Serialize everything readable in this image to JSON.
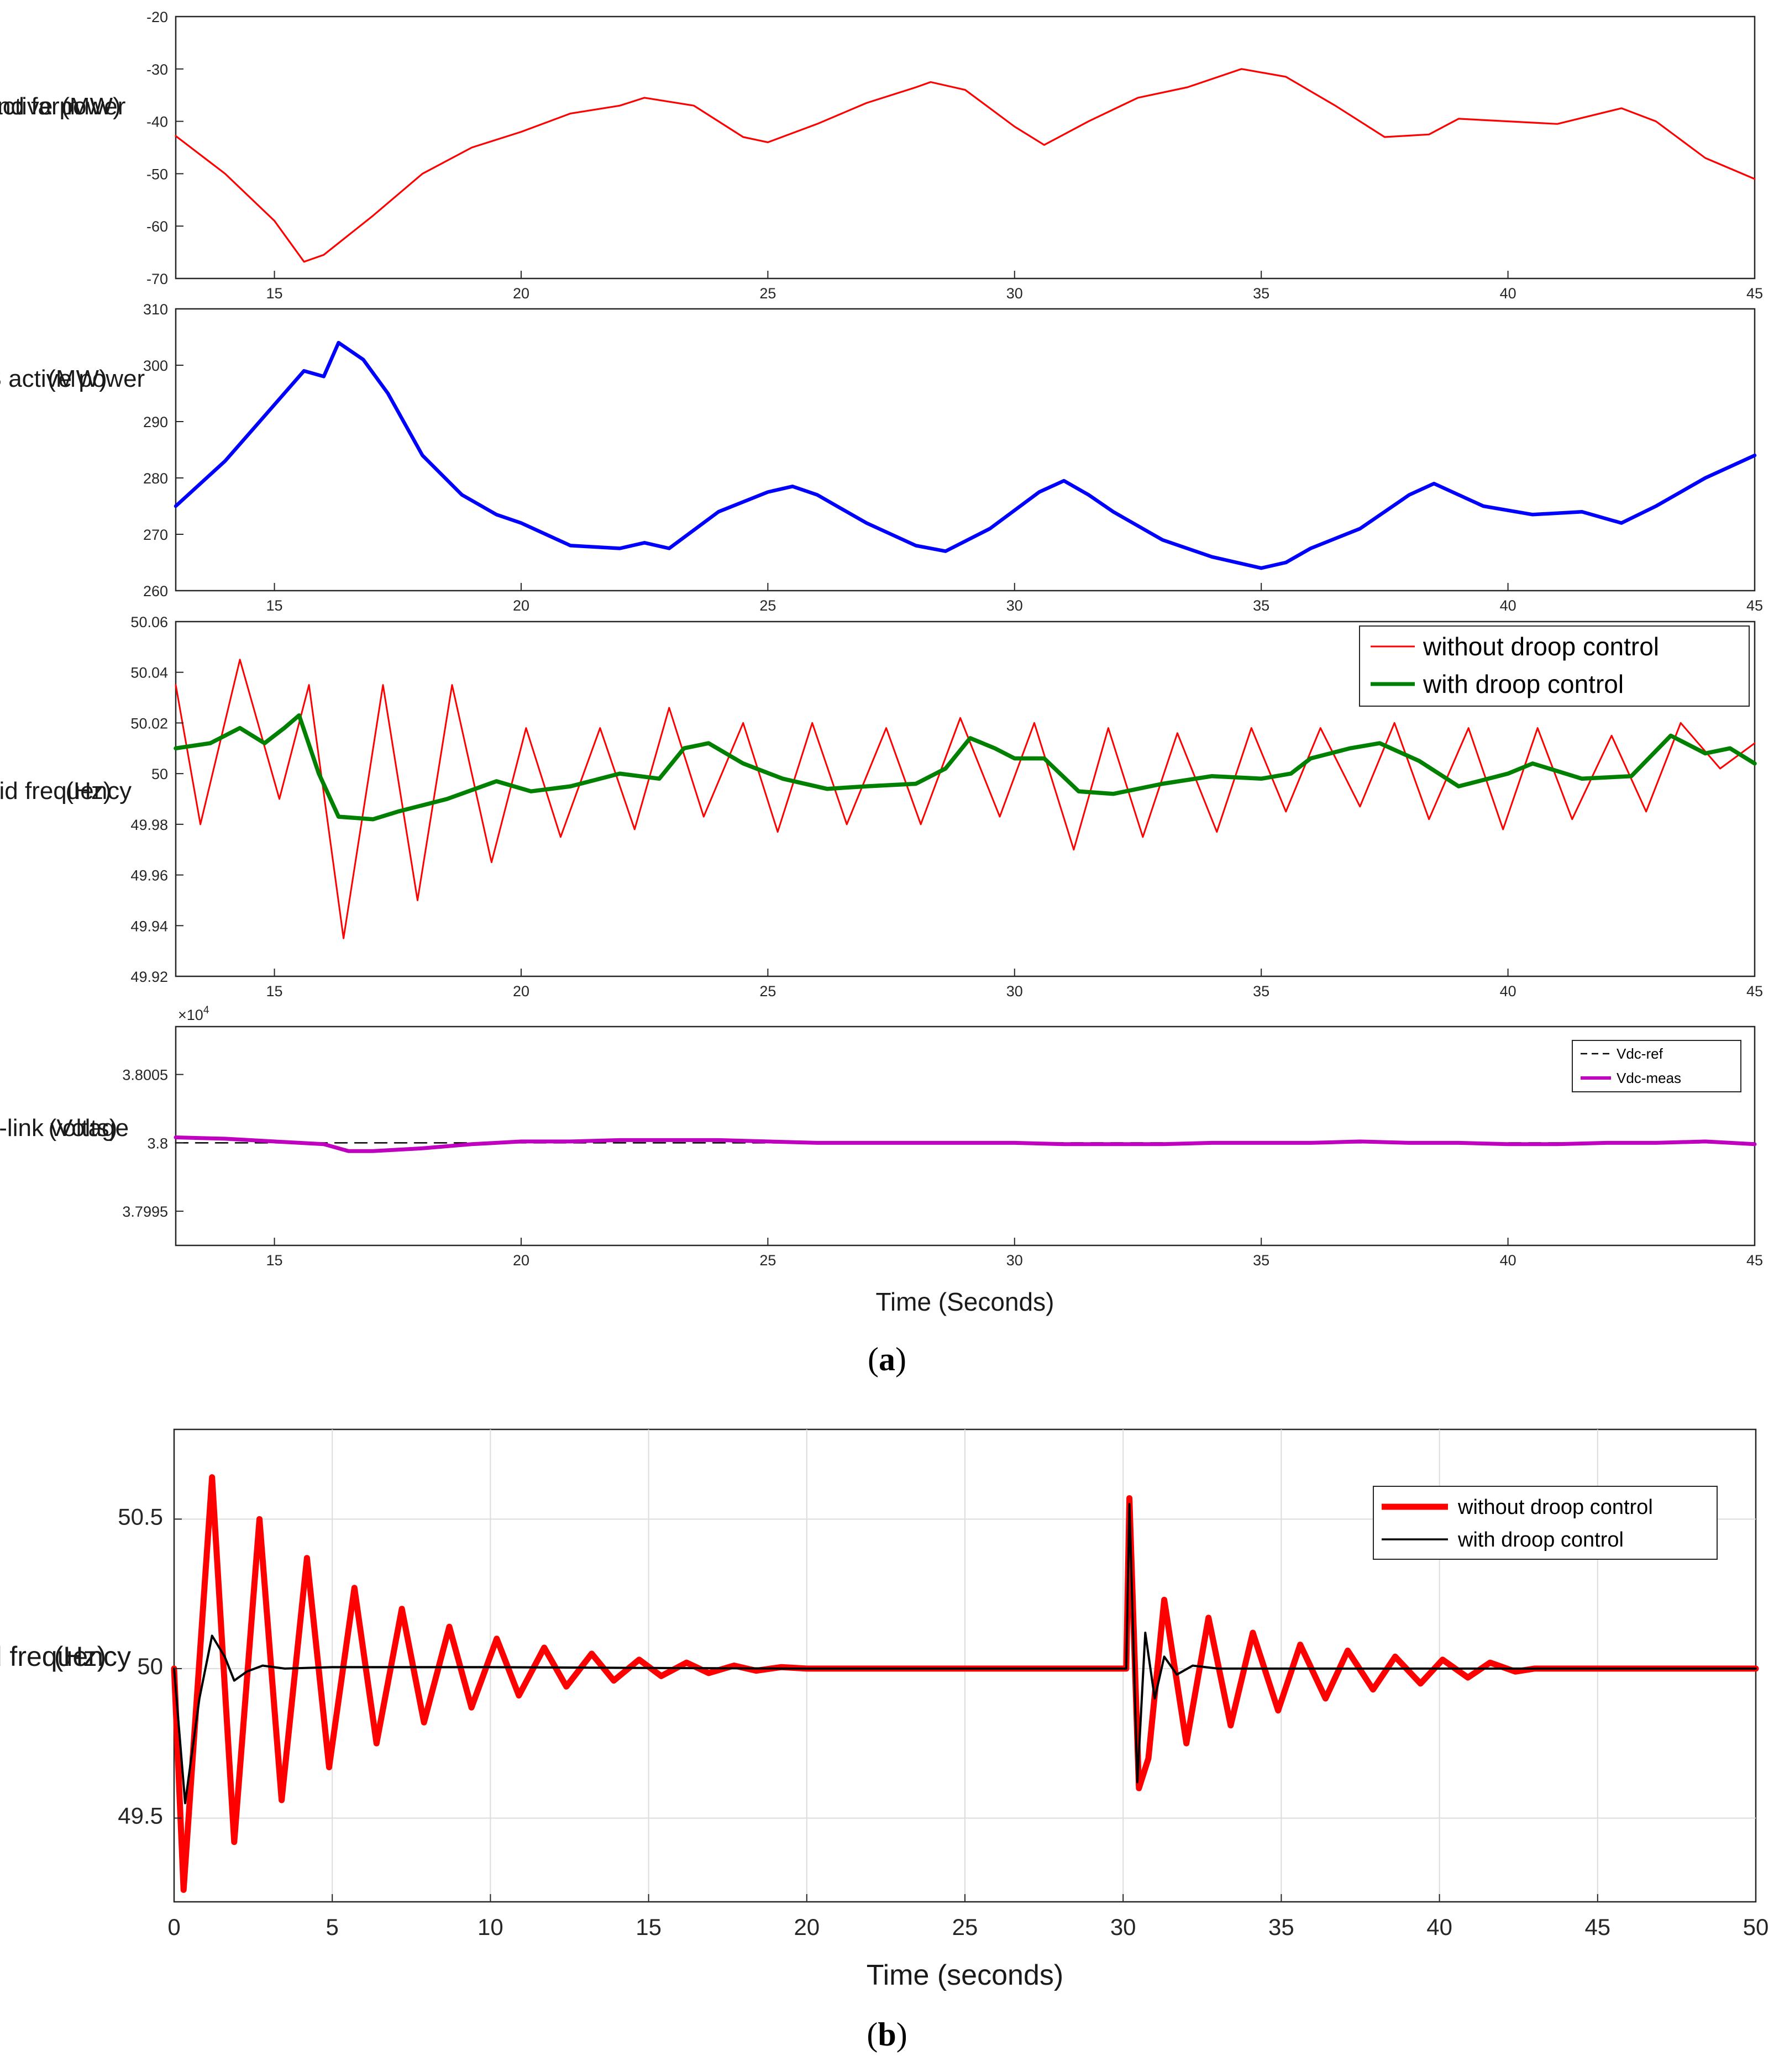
{
  "figure": {
    "caption_a": "a",
    "caption_b": "b"
  },
  "chart_data": [
    {
      "id": "p1",
      "type": "line",
      "ylabel_lines": [
        "wind farm",
        "active power",
        "(MW)"
      ],
      "xlim": [
        13,
        45
      ],
      "ylim": [
        -70,
        -20
      ],
      "xticks": [
        15,
        20,
        25,
        30,
        35,
        40,
        45
      ],
      "yticks": [
        -70,
        -60,
        -50,
        -40,
        -30,
        -20
      ],
      "grid": false,
      "series": [
        {
          "name": "wind farm active power",
          "color": "#ff0000",
          "x": [
            13,
            14,
            15,
            15.6,
            16,
            17,
            18,
            19,
            20,
            21,
            22,
            22.5,
            23.5,
            24.5,
            25,
            26,
            27,
            28,
            28.3,
            29,
            30,
            30.6,
            31.5,
            32.5,
            33.5,
            34.6,
            35.5,
            36.5,
            37.5,
            38.4,
            39,
            40,
            41,
            42.3,
            43,
            44,
            45
          ],
          "y": [
            -42.8,
            -50,
            -59,
            -66.8,
            -65.5,
            -58,
            -50,
            -45,
            -42,
            -38.5,
            -37,
            -35.5,
            -37,
            -43,
            -44,
            -40.5,
            -36.5,
            -33.5,
            -32.5,
            -34,
            -41,
            -44.5,
            -40,
            -35.5,
            -33.5,
            -30,
            -31.5,
            -37,
            -43,
            -42.5,
            -39.5,
            -40,
            -40.5,
            -37.5,
            -40,
            -47,
            -51
          ]
        }
      ]
    },
    {
      "id": "p2",
      "type": "line",
      "ylabel_lines": [
        "VSPS active power",
        "(MW)"
      ],
      "xlim": [
        13,
        45
      ],
      "ylim": [
        260,
        310
      ],
      "xticks": [
        15,
        20,
        25,
        30,
        35,
        40,
        45
      ],
      "yticks": [
        260,
        270,
        280,
        290,
        300,
        310
      ],
      "grid": false,
      "series": [
        {
          "name": "VSPS active power",
          "color": "#0000ff",
          "x": [
            13,
            14,
            15,
            15.6,
            16,
            16.3,
            16.8,
            17.3,
            18,
            18.8,
            19.5,
            20,
            20.5,
            21,
            22,
            22.5,
            23,
            24,
            25,
            25.5,
            26,
            27,
            28,
            28.6,
            29.5,
            30.5,
            31,
            31.5,
            32,
            33,
            34,
            35,
            35.5,
            36,
            37,
            38,
            38.5,
            39.5,
            40.5,
            41.5,
            42.3,
            43,
            44,
            45
          ],
          "y": [
            275,
            283,
            293,
            299,
            298,
            304,
            301,
            295,
            284,
            277,
            273.5,
            272,
            270,
            268,
            267.5,
            268.5,
            267.5,
            274,
            277.5,
            278.5,
            277,
            272,
            268,
            267,
            271,
            277.5,
            279.5,
            277,
            274,
            269,
            266,
            264,
            265,
            267.5,
            271,
            277,
            279,
            275,
            273.5,
            274,
            272,
            275,
            280,
            284
          ]
        }
      ]
    },
    {
      "id": "p3",
      "type": "line",
      "ylabel_lines": [
        "Grid frequency",
        "(Hz)"
      ],
      "xlim": [
        13,
        45
      ],
      "ylim": [
        49.92,
        50.06
      ],
      "xticks": [
        15,
        20,
        25,
        30,
        35,
        40,
        45
      ],
      "yticks": [
        49.92,
        49.94,
        49.96,
        49.98,
        50,
        50.02,
        50.04,
        50.06
      ],
      "grid": false,
      "legend_position": "top-right",
      "series": [
        {
          "name": "without droop control",
          "color": "#ff0000",
          "x": [
            13,
            13.5,
            14.3,
            15.1,
            15.7,
            16.4,
            17.2,
            17.9,
            18.6,
            19.4,
            20.1,
            20.8,
            21.6,
            22.3,
            23,
            23.7,
            24.5,
            25.2,
            25.9,
            26.6,
            27.4,
            28.1,
            28.9,
            29.7,
            30.4,
            31.2,
            31.9,
            32.6,
            33.3,
            34.1,
            34.8,
            35.5,
            36.2,
            37,
            37.7,
            38.4,
            39.2,
            39.9,
            40.6,
            41.3,
            42.1,
            42.8,
            43.5,
            44.3,
            45
          ],
          "y": [
            50.035,
            49.98,
            50.045,
            49.99,
            50.035,
            49.935,
            50.035,
            49.95,
            50.035,
            49.965,
            50.018,
            49.975,
            50.018,
            49.978,
            50.026,
            49.983,
            50.02,
            49.977,
            50.02,
            49.98,
            50.018,
            49.98,
            50.022,
            49.983,
            50.02,
            49.97,
            50.018,
            49.975,
            50.016,
            49.977,
            50.018,
            49.985,
            50.018,
            49.987,
            50.02,
            49.982,
            50.018,
            49.978,
            50.018,
            49.982,
            50.015,
            49.985,
            50.02,
            50.002,
            50.012
          ]
        },
        {
          "name": "with droop control",
          "color": "#008000",
          "x": [
            13,
            13.7,
            14.3,
            14.8,
            15.2,
            15.5,
            15.9,
            16.3,
            17,
            17.5,
            18.5,
            19.5,
            20.2,
            21,
            22,
            22.8,
            23.3,
            23.8,
            24.5,
            25.3,
            26.2,
            27,
            28,
            28.6,
            29.1,
            29.6,
            30,
            30.6,
            31.3,
            32,
            33,
            34,
            35,
            35.6,
            36,
            36.8,
            37.4,
            38.2,
            39,
            40,
            40.5,
            41.5,
            42.5,
            43.3,
            44,
            44.5,
            45
          ],
          "y": [
            50.01,
            50.012,
            50.018,
            50.012,
            50.018,
            50.023,
            50.0,
            49.983,
            49.982,
            49.985,
            49.99,
            49.997,
            49.993,
            49.995,
            50.0,
            49.998,
            50.01,
            50.012,
            50.004,
            49.998,
            49.994,
            49.995,
            49.996,
            50.002,
            50.014,
            50.01,
            50.006,
            50.006,
            49.993,
            49.992,
            49.996,
            49.999,
            49.998,
            50.0,
            50.006,
            50.01,
            50.012,
            50.005,
            49.995,
            50.0,
            50.004,
            49.998,
            49.999,
            50.015,
            50.008,
            50.01,
            50.004
          ]
        }
      ]
    },
    {
      "id": "p4",
      "type": "line",
      "ylabel_lines": [
        "DC-link voltage",
        "(Volts)"
      ],
      "axis_exponent": "×10",
      "axis_exponent_power": "4",
      "xlim": [
        13,
        45
      ],
      "ylim": [
        3.79925,
        3.80085
      ],
      "xticks": [
        15,
        20,
        25,
        30,
        35,
        40,
        45
      ],
      "yticks": [
        3.7995,
        3.8,
        3.8005
      ],
      "grid": false,
      "legend_position": "top-right",
      "series": [
        {
          "name": "Vdc-ref",
          "color": "#000000",
          "dashed": true,
          "x": [
            13,
            45
          ],
          "y": [
            3.8,
            3.8
          ]
        },
        {
          "name": "Vdc-meas",
          "color": "#bf00bf",
          "x": [
            13,
            14,
            15,
            16,
            16.5,
            17,
            18,
            19,
            20,
            21,
            22,
            23,
            24,
            25,
            26,
            27,
            28,
            29,
            30,
            31,
            32,
            33,
            34,
            35,
            36,
            37,
            38,
            39,
            40,
            41,
            42,
            43,
            44,
            45
          ],
          "y": [
            3.80004,
            3.80003,
            3.80001,
            3.79999,
            3.79994,
            3.79994,
            3.79996,
            3.79999,
            3.80001,
            3.80001,
            3.80002,
            3.80002,
            3.80002,
            3.80001,
            3.8,
            3.8,
            3.8,
            3.8,
            3.8,
            3.79999,
            3.79999,
            3.79999,
            3.8,
            3.8,
            3.8,
            3.80001,
            3.8,
            3.8,
            3.79999,
            3.79999,
            3.8,
            3.8,
            3.80001,
            3.79999
          ]
        }
      ]
    },
    {
      "id": "p5",
      "type": "line",
      "ylabel_lines": [
        "Grid frequency",
        "(Hz)"
      ],
      "xlabel": "Time (seconds)",
      "xlim": [
        0,
        50
      ],
      "ylim": [
        49.22,
        50.8
      ],
      "xticks": [
        0,
        5,
        10,
        15,
        20,
        25,
        30,
        35,
        40,
        45,
        50
      ],
      "yticks": [
        49.5,
        50,
        50.5
      ],
      "grid": true,
      "legend_position": "top-right",
      "series": [
        {
          "name": "without droop control",
          "color": "#ff0000",
          "x": [
            0,
            0.3,
            1.2,
            1.9,
            2.7,
            3.4,
            4.2,
            4.9,
            5.7,
            6.4,
            7.2,
            7.9,
            8.7,
            9.4,
            10.2,
            10.9,
            11.7,
            12.4,
            13.2,
            13.9,
            14.7,
            15.4,
            16.2,
            16.9,
            17.7,
            18.4,
            19.2,
            20,
            30.1,
            30.2,
            30.5,
            30.8,
            31.3,
            32,
            32.7,
            33.4,
            34.1,
            34.9,
            35.6,
            36.4,
            37.1,
            37.9,
            38.6,
            39.4,
            40.1,
            40.9,
            41.6,
            42.4,
            43,
            50
          ],
          "y": [
            50,
            49.26,
            50.64,
            49.42,
            50.5,
            49.56,
            50.37,
            49.67,
            50.27,
            49.75,
            50.2,
            49.82,
            50.14,
            49.87,
            50.1,
            49.91,
            50.07,
            49.94,
            50.05,
            49.96,
            50.03,
            49.975,
            50.02,
            49.985,
            50.01,
            49.993,
            50.005,
            50,
            50,
            50.57,
            49.6,
            49.7,
            50.23,
            49.75,
            50.17,
            49.81,
            50.12,
            49.86,
            50.08,
            49.9,
            50.06,
            49.93,
            50.04,
            49.95,
            50.03,
            49.97,
            50.02,
            49.99,
            50,
            50
          ]
        },
        {
          "name": "with droop control",
          "color": "#000000",
          "x": [
            0,
            0.35,
            0.8,
            1.2,
            1.6,
            1.9,
            2.3,
            2.8,
            3.5,
            5,
            10,
            15,
            20,
            30.1,
            30.2,
            30.45,
            30.7,
            31,
            31.3,
            31.7,
            32.2,
            33,
            35,
            40,
            45,
            50
          ],
          "y": [
            50,
            49.55,
            49.9,
            50.11,
            50.04,
            49.96,
            49.99,
            50.01,
            50,
            50.005,
            50.005,
            50.002,
            50,
            50,
            50.55,
            49.62,
            50.12,
            49.9,
            50.04,
            49.98,
            50.01,
            50,
            50,
            50,
            50,
            50
          ]
        }
      ]
    }
  ]
}
